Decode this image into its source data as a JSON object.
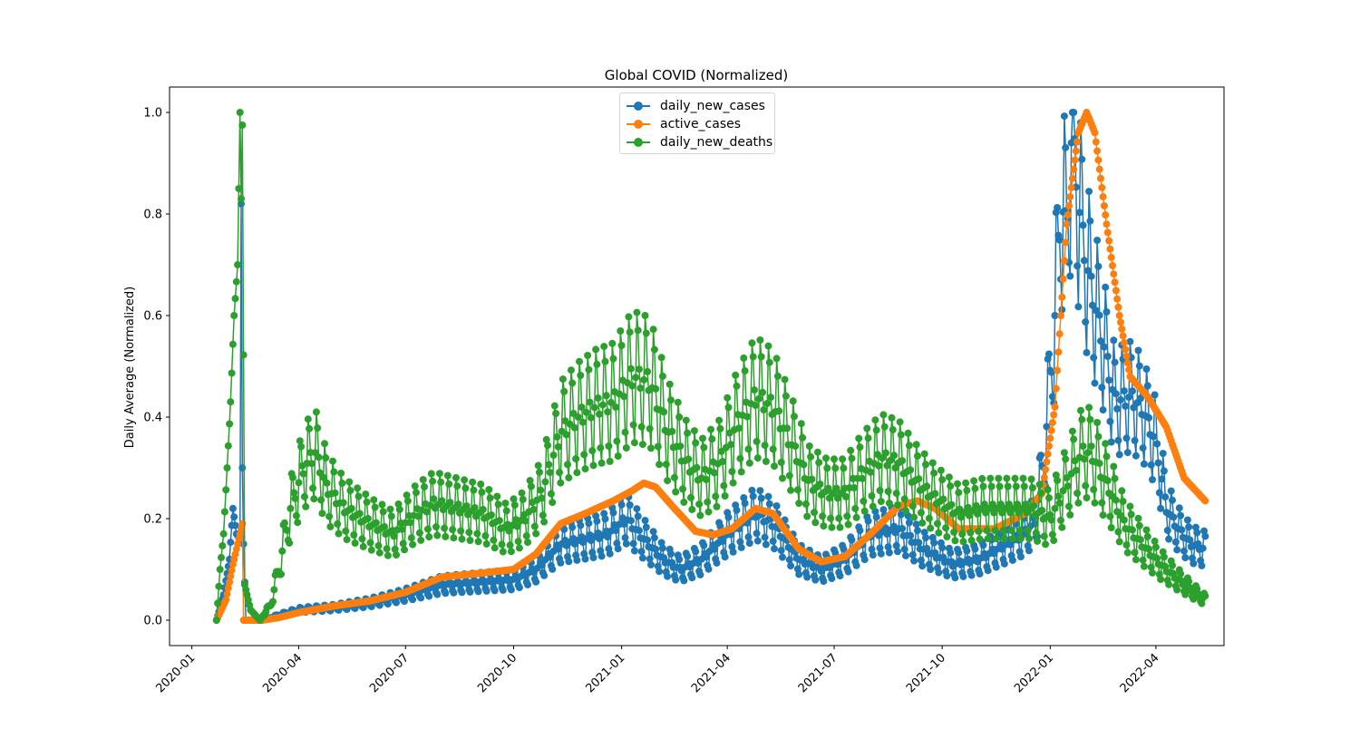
{
  "chart_data": {
    "type": "line",
    "title": "Global COVID (Normalized)",
    "xlabel": "",
    "ylabel": "Daily Average (Normalized)",
    "x_range": [
      "2019-12-13",
      "2022-05-29"
    ],
    "ylim": [
      -0.05,
      1.05
    ],
    "x_ticks": [
      "2020-01-01",
      "2020-04-01",
      "2020-07-01",
      "2020-10-01",
      "2021-01-01",
      "2021-04-01",
      "2021-07-01",
      "2021-10-01",
      "2022-01-01",
      "2022-04-01"
    ],
    "x_tick_labels": [
      "2020-01",
      "2020-04",
      "2020-07",
      "2020-10",
      "2021-01",
      "2021-04",
      "2021-07",
      "2021-10",
      "2022-01",
      "2022-04"
    ],
    "y_ticks": [
      0.0,
      0.2,
      0.4,
      0.6,
      0.8,
      1.0
    ],
    "y_tick_labels": [
      "0.0",
      "0.2",
      "0.4",
      "0.6",
      "0.8",
      "1.0"
    ],
    "grid": false,
    "legend_position": "top-center",
    "marker": "circle",
    "series": [
      {
        "name": "daily_new_cases",
        "color": "#1f77b4",
        "points": [
          [
            "2020-01-22",
            0.0
          ],
          [
            "2020-01-28",
            0.05
          ],
          [
            "2020-02-02",
            0.12
          ],
          [
            "2020-02-05",
            0.22
          ],
          [
            "2020-02-08",
            0.17
          ],
          [
            "2020-02-11",
            0.16
          ],
          [
            "2020-02-12",
            0.82
          ],
          [
            "2020-02-13",
            0.3
          ],
          [
            "2020-02-14",
            0.15
          ],
          [
            "2020-02-16",
            0.0
          ],
          [
            "2020-03-01",
            0.0
          ],
          [
            "2020-03-15",
            0.01
          ],
          [
            "2020-04-01",
            0.02
          ],
          [
            "2020-05-01",
            0.025
          ],
          [
            "2020-06-01",
            0.035
          ],
          [
            "2020-07-01",
            0.05
          ],
          [
            "2020-08-01",
            0.07
          ],
          [
            "2020-09-01",
            0.075
          ],
          [
            "2020-10-01",
            0.08
          ],
          [
            "2020-10-20",
            0.1
          ],
          [
            "2020-11-10",
            0.15
          ],
          [
            "2020-12-01",
            0.16
          ],
          [
            "2020-12-20",
            0.17
          ],
          [
            "2021-01-05",
            0.2
          ],
          [
            "2021-01-20",
            0.16
          ],
          [
            "2021-02-05",
            0.12
          ],
          [
            "2021-02-20",
            0.1
          ],
          [
            "2021-03-10",
            0.12
          ],
          [
            "2021-04-01",
            0.17
          ],
          [
            "2021-04-25",
            0.21
          ],
          [
            "2021-05-10",
            0.19
          ],
          [
            "2021-06-01",
            0.12
          ],
          [
            "2021-06-20",
            0.1
          ],
          [
            "2021-07-10",
            0.12
          ],
          [
            "2021-08-01",
            0.17
          ],
          [
            "2021-08-25",
            0.18
          ],
          [
            "2021-09-15",
            0.14
          ],
          [
            "2021-10-10",
            0.11
          ],
          [
            "2021-11-01",
            0.12
          ],
          [
            "2021-11-25",
            0.15
          ],
          [
            "2021-12-10",
            0.17
          ],
          [
            "2021-12-20",
            0.2
          ],
          [
            "2021-12-28",
            0.35
          ],
          [
            "2022-01-05",
            0.6
          ],
          [
            "2022-01-10",
            0.82
          ],
          [
            "2022-01-15",
            0.78
          ],
          [
            "2022-01-20",
            0.98
          ],
          [
            "2022-01-25",
            0.82
          ],
          [
            "2022-02-01",
            0.7
          ],
          [
            "2022-02-08",
            0.62
          ],
          [
            "2022-02-15",
            0.55
          ],
          [
            "2022-02-25",
            0.43
          ],
          [
            "2022-03-10",
            0.44
          ],
          [
            "2022-03-20",
            0.42
          ],
          [
            "2022-04-01",
            0.35
          ],
          [
            "2022-04-10",
            0.22
          ],
          [
            "2022-04-20",
            0.18
          ],
          [
            "2022-05-01",
            0.15
          ],
          [
            "2022-05-13",
            0.14
          ]
        ]
      },
      {
        "name": "active_cases",
        "color": "#ff7f0e",
        "points": [
          [
            "2020-01-22",
            0.0
          ],
          [
            "2020-01-30",
            0.04
          ],
          [
            "2020-02-05",
            0.11
          ],
          [
            "2020-02-12",
            0.18
          ],
          [
            "2020-02-13",
            0.19
          ],
          [
            "2020-02-14",
            0.0
          ],
          [
            "2020-03-01",
            0.0
          ],
          [
            "2020-03-15",
            0.005
          ],
          [
            "2020-04-01",
            0.015
          ],
          [
            "2020-05-01",
            0.028
          ],
          [
            "2020-06-01",
            0.038
          ],
          [
            "2020-07-01",
            0.055
          ],
          [
            "2020-08-01",
            0.085
          ],
          [
            "2020-09-01",
            0.092
          ],
          [
            "2020-10-01",
            0.1
          ],
          [
            "2020-10-20",
            0.13
          ],
          [
            "2020-11-10",
            0.19
          ],
          [
            "2020-12-01",
            0.21
          ],
          [
            "2020-12-25",
            0.235
          ],
          [
            "2021-01-10",
            0.255
          ],
          [
            "2021-01-20",
            0.27
          ],
          [
            "2021-01-30",
            0.262
          ],
          [
            "2021-02-15",
            0.22
          ],
          [
            "2021-03-05",
            0.175
          ],
          [
            "2021-03-20",
            0.168
          ],
          [
            "2021-04-05",
            0.18
          ],
          [
            "2021-04-25",
            0.22
          ],
          [
            "2021-05-10",
            0.21
          ],
          [
            "2021-06-01",
            0.14
          ],
          [
            "2021-06-20",
            0.115
          ],
          [
            "2021-07-10",
            0.125
          ],
          [
            "2021-08-01",
            0.17
          ],
          [
            "2021-08-25",
            0.225
          ],
          [
            "2021-09-10",
            0.235
          ],
          [
            "2021-09-25",
            0.22
          ],
          [
            "2021-10-15",
            0.18
          ],
          [
            "2021-11-15",
            0.18
          ],
          [
            "2021-12-10",
            0.21
          ],
          [
            "2021-12-25",
            0.25
          ],
          [
            "2022-01-05",
            0.42
          ],
          [
            "2022-01-15",
            0.78
          ],
          [
            "2022-01-25",
            0.96
          ],
          [
            "2022-02-01",
            1.0
          ],
          [
            "2022-02-08",
            0.96
          ],
          [
            "2022-02-18",
            0.78
          ],
          [
            "2022-03-01",
            0.6
          ],
          [
            "2022-03-10",
            0.48
          ],
          [
            "2022-03-25",
            0.44
          ],
          [
            "2022-04-10",
            0.38
          ],
          [
            "2022-04-25",
            0.28
          ],
          [
            "2022-05-13",
            0.235
          ]
        ]
      },
      {
        "name": "daily_new_deaths",
        "color": "#2ca02c",
        "points": [
          [
            "2020-01-22",
            0.0
          ],
          [
            "2020-01-25",
            0.1
          ],
          [
            "2020-01-28",
            0.17
          ],
          [
            "2020-01-31",
            0.3
          ],
          [
            "2020-02-03",
            0.43
          ],
          [
            "2020-02-06",
            0.6
          ],
          [
            "2020-02-09",
            0.7
          ],
          [
            "2020-02-11",
            1.0
          ],
          [
            "2020-02-12",
            0.83
          ],
          [
            "2020-02-13",
            0.975
          ],
          [
            "2020-02-15",
            0.07
          ],
          [
            "2020-02-20",
            0.02
          ],
          [
            "2020-02-28",
            0.0
          ],
          [
            "2020-03-08",
            0.03
          ],
          [
            "2020-03-15",
            0.1
          ],
          [
            "2020-03-25",
            0.22
          ],
          [
            "2020-04-05",
            0.3
          ],
          [
            "2020-04-15",
            0.33
          ],
          [
            "2020-04-25",
            0.26
          ],
          [
            "2020-05-10",
            0.22
          ],
          [
            "2020-06-01",
            0.19
          ],
          [
            "2020-06-20",
            0.17
          ],
          [
            "2020-07-10",
            0.21
          ],
          [
            "2020-07-25",
            0.23
          ],
          [
            "2020-08-15",
            0.22
          ],
          [
            "2020-09-05",
            0.21
          ],
          [
            "2020-09-25",
            0.18
          ],
          [
            "2020-10-10",
            0.2
          ],
          [
            "2020-10-25",
            0.25
          ],
          [
            "2020-11-10",
            0.37
          ],
          [
            "2020-11-25",
            0.4
          ],
          [
            "2020-12-10",
            0.42
          ],
          [
            "2020-12-25",
            0.43
          ],
          [
            "2021-01-10",
            0.48
          ],
          [
            "2021-01-25",
            0.47
          ],
          [
            "2021-02-10",
            0.37
          ],
          [
            "2021-02-25",
            0.31
          ],
          [
            "2021-03-10",
            0.28
          ],
          [
            "2021-03-25",
            0.31
          ],
          [
            "2021-04-10",
            0.39
          ],
          [
            "2021-04-25",
            0.44
          ],
          [
            "2021-05-10",
            0.42
          ],
          [
            "2021-05-25",
            0.35
          ],
          [
            "2021-06-10",
            0.27
          ],
          [
            "2021-06-25",
            0.25
          ],
          [
            "2021-07-10",
            0.25
          ],
          [
            "2021-07-25",
            0.29
          ],
          [
            "2021-08-10",
            0.32
          ],
          [
            "2021-08-25",
            0.31
          ],
          [
            "2021-09-10",
            0.27
          ],
          [
            "2021-09-25",
            0.24
          ],
          [
            "2021-10-15",
            0.21
          ],
          [
            "2021-11-05",
            0.22
          ],
          [
            "2021-11-25",
            0.22
          ],
          [
            "2021-12-15",
            0.22
          ],
          [
            "2022-01-01",
            0.2
          ],
          [
            "2022-01-15",
            0.27
          ],
          [
            "2022-01-28",
            0.33
          ],
          [
            "2022-02-05",
            0.33
          ],
          [
            "2022-02-20",
            0.26
          ],
          [
            "2022-03-05",
            0.19
          ],
          [
            "2022-03-20",
            0.15
          ],
          [
            "2022-04-05",
            0.11
          ],
          [
            "2022-04-20",
            0.08
          ],
          [
            "2022-05-01",
            0.06
          ],
          [
            "2022-05-13",
            0.04
          ]
        ]
      }
    ]
  }
}
